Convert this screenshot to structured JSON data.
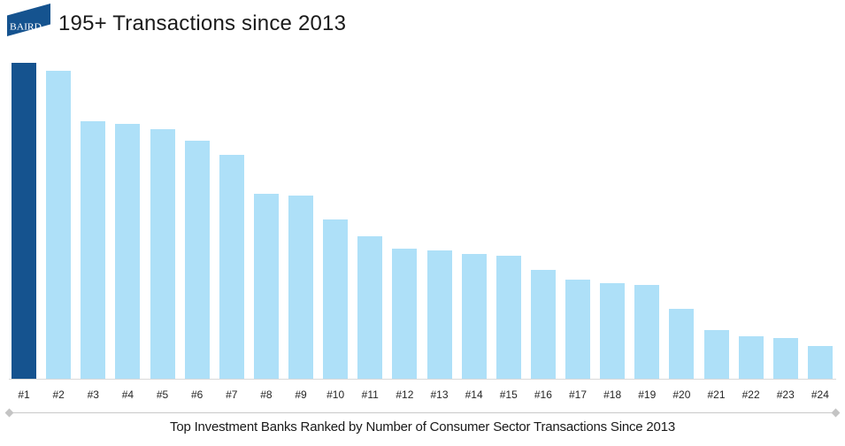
{
  "header": {
    "logo": {
      "text": "BAIRD",
      "color": "#15538F",
      "text_color": "#ffffff"
    },
    "title": "195+ Transactions since 2013"
  },
  "chart_data": {
    "type": "bar",
    "title": "195+ Transactions since 2013",
    "categories": [
      "#1",
      "#2",
      "#3",
      "#4",
      "#5",
      "#6",
      "#7",
      "#8",
      "#9",
      "#10",
      "#11",
      "#12",
      "#13",
      "#14",
      "#15",
      "#16",
      "#17",
      "#18",
      "#19",
      "#20",
      "#21",
      "#22",
      "#23",
      "#24"
    ],
    "values": [
      195,
      190,
      159,
      157,
      154,
      147,
      138,
      114,
      113,
      98,
      88,
      80,
      79,
      77,
      76,
      67,
      61,
      59,
      58,
      43,
      30,
      26,
      25,
      20
    ],
    "values_are_estimates": true,
    "highlight_index": 0,
    "highlight_color": "#15538F",
    "bar_color": "#AEE0F8",
    "xlabel": "",
    "ylabel": "",
    "ylim": [
      0,
      210
    ],
    "grid": false,
    "legend": false,
    "axis_line_color": "#d9d9d9"
  },
  "footer": {
    "divider_color": "#c9c9c9",
    "caption": "Top Investment Banks Ranked by Number of Consumer Sector Transactions Since 2013"
  }
}
